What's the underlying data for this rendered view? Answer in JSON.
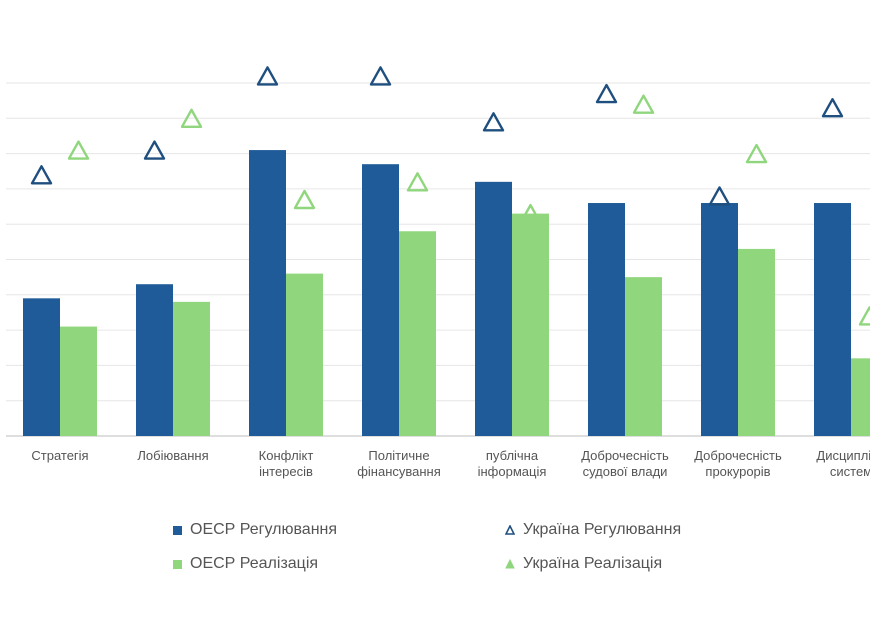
{
  "chart_data": {
    "type": "bar",
    "title": "",
    "xlabel": "",
    "ylabel": "",
    "ylim": [
      0,
      1
    ],
    "grid": true,
    "legend_position": "bottom",
    "categories": [
      [
        "Стратегія"
      ],
      [
        "Лобіювання"
      ],
      [
        "Конфлікт",
        "інтересів"
      ],
      [
        "Політичне",
        "фінансування"
      ],
      [
        "публічна",
        "інформація"
      ],
      [
        "Доброчесність",
        "судової влади"
      ],
      [
        "Доброчесність",
        "прокурорів"
      ],
      [
        "Дисципліна",
        "систем"
      ]
    ],
    "series": [
      {
        "name": "ОЕСР Регулювання",
        "kind": "bar",
        "color": "#1f5b99",
        "values": [
          0.39,
          0.43,
          0.81,
          0.77,
          0.72,
          0.66,
          0.66,
          0.66
        ]
      },
      {
        "name": "ОЕСР Реалізація",
        "kind": "bar",
        "color": "#8fd67c",
        "values": [
          0.31,
          0.38,
          0.46,
          0.58,
          0.63,
          0.45,
          0.53,
          0.22
        ]
      },
      {
        "name": "Україна Регулювання",
        "kind": "marker",
        "color": "#1f4f7f",
        "values": [
          0.74,
          0.81,
          1.02,
          1.02,
          0.89,
          0.97,
          0.68,
          0.93
        ]
      },
      {
        "name": "Україна Реалізація",
        "kind": "marker",
        "color": "#8fd67c",
        "values": [
          0.81,
          0.9,
          0.67,
          0.72,
          0.63,
          0.94,
          0.8,
          0.34
        ]
      }
    ]
  }
}
